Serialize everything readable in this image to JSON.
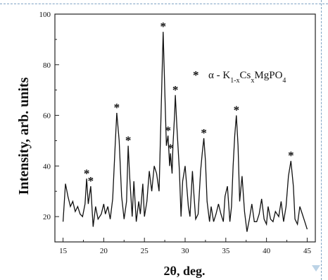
{
  "chart_data": {
    "type": "line",
    "xlabel": "2θ, deg.",
    "ylabel": "Intensity, arb. units",
    "xlim": [
      14,
      46
    ],
    "ylim": [
      10,
      100
    ],
    "x_ticks": [
      15,
      20,
      25,
      30,
      35,
      40,
      45
    ],
    "y_ticks": [
      20,
      40,
      60,
      80,
      100
    ],
    "legend": {
      "position": "top-right",
      "marker": "*",
      "prefix": "α - ",
      "formula": "K1-xCsxMgPO4"
    },
    "peak_marker": "*",
    "peaks": [
      {
        "x": 17.9,
        "y": 35
      },
      {
        "x": 18.4,
        "y": 32
      },
      {
        "x": 21.6,
        "y": 61
      },
      {
        "x": 23.0,
        "y": 48
      },
      {
        "x": 27.3,
        "y": 93
      },
      {
        "x": 27.9,
        "y": 52
      },
      {
        "x": 28.2,
        "y": 45
      },
      {
        "x": 28.8,
        "y": 68
      },
      {
        "x": 32.3,
        "y": 51
      },
      {
        "x": 36.3,
        "y": 60
      },
      {
        "x": 43.0,
        "y": 42
      }
    ],
    "series": [
      {
        "points": [
          [
            15.0,
            18
          ],
          [
            15.3,
            33
          ],
          [
            15.6,
            28
          ],
          [
            15.9,
            24
          ],
          [
            16.2,
            26
          ],
          [
            16.5,
            22
          ],
          [
            16.8,
            24
          ],
          [
            17.1,
            21
          ],
          [
            17.4,
            20
          ],
          [
            17.7,
            25
          ],
          [
            17.9,
            35
          ],
          [
            18.1,
            25
          ],
          [
            18.4,
            32
          ],
          [
            18.7,
            16
          ],
          [
            19.0,
            24
          ],
          [
            19.3,
            19
          ],
          [
            19.7,
            21
          ],
          [
            20.0,
            25
          ],
          [
            20.2,
            21
          ],
          [
            20.5,
            24
          ],
          [
            20.8,
            19
          ],
          [
            21.1,
            27
          ],
          [
            21.4,
            48
          ],
          [
            21.6,
            61
          ],
          [
            21.9,
            50
          ],
          [
            22.2,
            28
          ],
          [
            22.5,
            19
          ],
          [
            22.8,
            26
          ],
          [
            23.0,
            48
          ],
          [
            23.2,
            35
          ],
          [
            23.5,
            20
          ],
          [
            23.7,
            34
          ],
          [
            24.0,
            18
          ],
          [
            24.3,
            26
          ],
          [
            24.5,
            21
          ],
          [
            24.8,
            33
          ],
          [
            25.0,
            20
          ],
          [
            25.3,
            26
          ],
          [
            25.6,
            38
          ],
          [
            25.9,
            30
          ],
          [
            26.2,
            40
          ],
          [
            26.5,
            37
          ],
          [
            26.8,
            30
          ],
          [
            27.0,
            55
          ],
          [
            27.2,
            80
          ],
          [
            27.3,
            93
          ],
          [
            27.5,
            70
          ],
          [
            27.7,
            48
          ],
          [
            27.9,
            52
          ],
          [
            28.0,
            46
          ],
          [
            28.1,
            40
          ],
          [
            28.2,
            45
          ],
          [
            28.3,
            41
          ],
          [
            28.4,
            37
          ],
          [
            28.5,
            48
          ],
          [
            28.7,
            60
          ],
          [
            28.8,
            68
          ],
          [
            29.0,
            55
          ],
          [
            29.3,
            38
          ],
          [
            29.5,
            20
          ],
          [
            29.7,
            34
          ],
          [
            30.0,
            40
          ],
          [
            30.2,
            32
          ],
          [
            30.4,
            24
          ],
          [
            30.6,
            20
          ],
          [
            30.9,
            38
          ],
          [
            31.1,
            28
          ],
          [
            31.3,
            19
          ],
          [
            31.6,
            21
          ],
          [
            31.9,
            38
          ],
          [
            32.1,
            45
          ],
          [
            32.3,
            51
          ],
          [
            32.5,
            42
          ],
          [
            32.7,
            26
          ],
          [
            33.0,
            18
          ],
          [
            33.2,
            24
          ],
          [
            33.5,
            18
          ],
          [
            33.8,
            21
          ],
          [
            34.1,
            25
          ],
          [
            34.4,
            21
          ],
          [
            34.7,
            18
          ],
          [
            34.9,
            28
          ],
          [
            35.2,
            32
          ],
          [
            35.5,
            18
          ],
          [
            35.7,
            24
          ],
          [
            35.9,
            40
          ],
          [
            36.1,
            52
          ],
          [
            36.3,
            60
          ],
          [
            36.5,
            48
          ],
          [
            36.7,
            26
          ],
          [
            37.0,
            36
          ],
          [
            37.3,
            22
          ],
          [
            37.6,
            14
          ],
          [
            37.9,
            19
          ],
          [
            38.2,
            25
          ],
          [
            38.5,
            18
          ],
          [
            38.8,
            18
          ],
          [
            39.1,
            21
          ],
          [
            39.4,
            27
          ],
          [
            39.7,
            19
          ],
          [
            40.0,
            17
          ],
          [
            40.2,
            24
          ],
          [
            40.5,
            19
          ],
          [
            40.8,
            18
          ],
          [
            41.1,
            22
          ],
          [
            41.5,
            20
          ],
          [
            41.8,
            26
          ],
          [
            42.1,
            18
          ],
          [
            42.4,
            24
          ],
          [
            42.7,
            36
          ],
          [
            43.0,
            42
          ],
          [
            43.3,
            32
          ],
          [
            43.5,
            19
          ],
          [
            43.8,
            17
          ],
          [
            44.1,
            24
          ],
          [
            44.4,
            21
          ],
          [
            44.7,
            18
          ],
          [
            45.0,
            15
          ]
        ]
      }
    ]
  }
}
